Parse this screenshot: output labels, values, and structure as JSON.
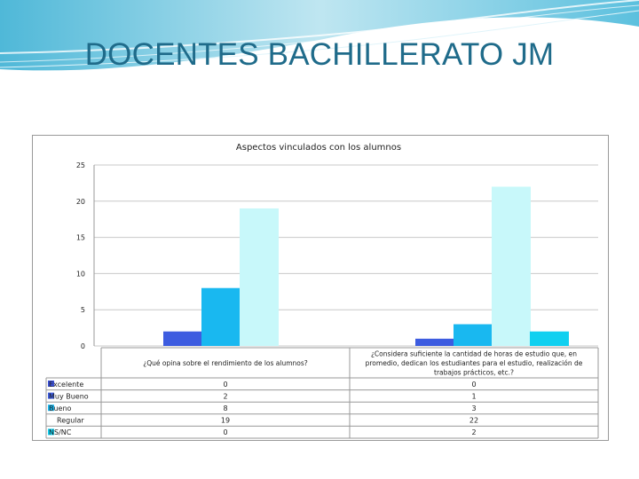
{
  "slide": {
    "title": "DOCENTES BACHILLERATO JM"
  },
  "chart_data": {
    "type": "bar",
    "title": "Aspectos vinculados con los alumnos",
    "categories": [
      [
        "¿Qué opina sobre el rendimiento de los alumnos?"
      ],
      [
        "¿Considera suficiente la cantidad de horas de estudio que, en",
        "promedio, dedican los estudiantes para el estudio, realización de",
        "trabajos prácticos, etc.?"
      ]
    ],
    "series": [
      {
        "name": "Excelente",
        "values": [
          0,
          0
        ],
        "color": "#3a4fd6"
      },
      {
        "name": "Muy Bueno",
        "values": [
          2,
          1
        ],
        "color": "#3d5ce0"
      },
      {
        "name": "Bueno",
        "values": [
          8,
          3
        ],
        "color": "#19b8f0"
      },
      {
        "name": "Regular",
        "values": [
          19,
          22
        ],
        "color": "#c8f8fa"
      },
      {
        "name": "NS/NC",
        "values": [
          0,
          2
        ],
        "color": "#10d0f0"
      }
    ],
    "ylim": [
      0,
      25
    ],
    "yticks": [
      "0",
      "5",
      "10",
      "15",
      "20",
      "25"
    ],
    "table_values": [
      [
        "0",
        "0"
      ],
      [
        "2",
        "1"
      ],
      [
        "8",
        "3"
      ],
      [
        "19",
        "22"
      ],
      [
        "0",
        "2"
      ]
    ],
    "grid": true,
    "legend": "table-left"
  }
}
